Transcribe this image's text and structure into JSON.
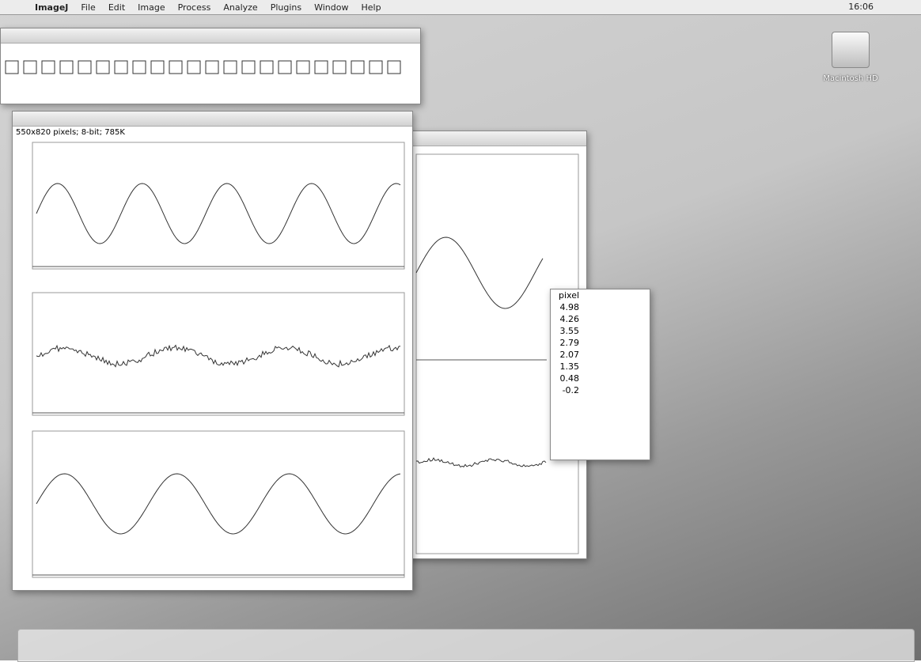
{
  "menu_bar": {
    "app": "ImageJ",
    "items": [
      "File",
      "Edit",
      "Image",
      "Process",
      "Analyze",
      "Plugins",
      "Window",
      "Help"
    ],
    "clock": "16:06"
  },
  "desktop": {
    "disk_label": "Macintosh HD"
  },
  "image_window": {
    "info": "550x820 pixels; 8-bit; 785K"
  },
  "results_window": {
    "header": "pixel",
    "values": [
      "4.98",
      "4.26",
      "3.55",
      "2.79",
      "2.07",
      "1.35",
      "0.48",
      "-0.2"
    ]
  }
}
